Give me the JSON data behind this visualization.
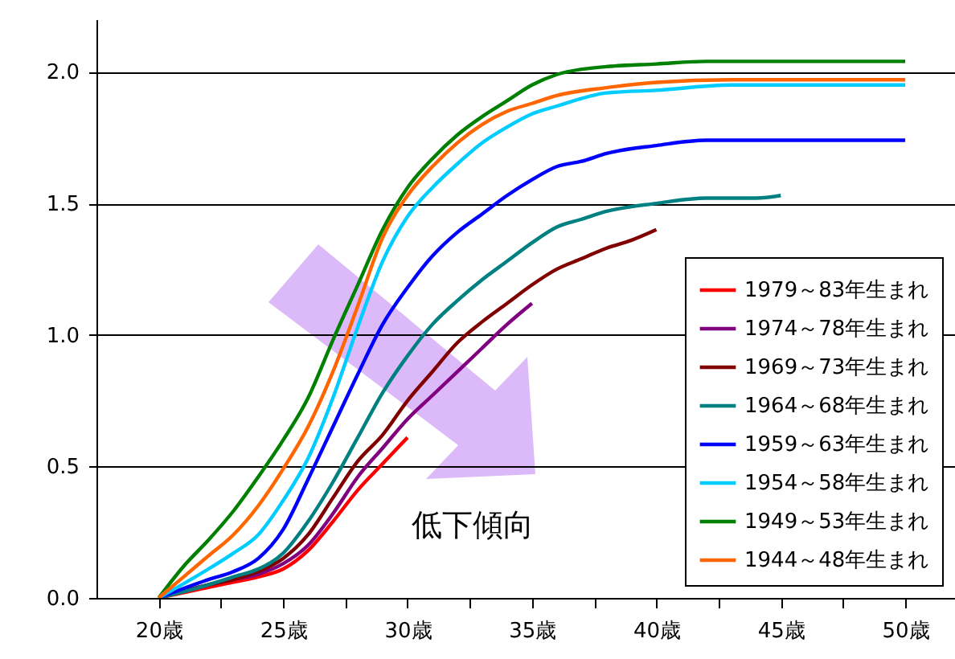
{
  "chart_data": {
    "type": "line",
    "annotations": [
      "低下傾向"
    ],
    "xlim": [
      17.5,
      52
    ],
    "ylim": [
      0,
      2.2
    ],
    "xticks": [
      {
        "value": 20,
        "label": "20歳"
      },
      {
        "value": 22.5,
        "label": null
      },
      {
        "value": 25,
        "label": "25歳"
      },
      {
        "value": 27.5,
        "label": null
      },
      {
        "value": 30,
        "label": "30歳"
      },
      {
        "value": 32.5,
        "label": null
      },
      {
        "value": 35,
        "label": "35歳"
      },
      {
        "value": 37.5,
        "label": null
      },
      {
        "value": 40,
        "label": "40歳"
      },
      {
        "value": 42.5,
        "label": null
      },
      {
        "value": 45,
        "label": "45歳"
      },
      {
        "value": 47.5,
        "label": null
      },
      {
        "value": 50,
        "label": "50歳"
      }
    ],
    "yticks": [
      {
        "value": 0,
        "label": "0.0"
      },
      {
        "value": 0.5,
        "label": "0.5"
      },
      {
        "value": 1,
        "label": "1.0"
      },
      {
        "value": 1.5,
        "label": "1.5"
      },
      {
        "value": 2,
        "label": "2.0"
      }
    ],
    "grid": "y",
    "legend": "bottom right",
    "series": [
      {
        "name": "1979～83年生まれ",
        "color": "#ff0000",
        "x": [
          20,
          22,
          23,
          24,
          25,
          26,
          27,
          28,
          29,
          30
        ],
        "values": [
          0,
          0.04,
          0.06,
          0.08,
          0.11,
          0.18,
          0.29,
          0.41,
          0.51,
          0.61
        ]
      },
      {
        "name": "1974～78年生まれ",
        "color": "#800080",
        "x": [
          20,
          22,
          23,
          24,
          25,
          26,
          27,
          28,
          29,
          30,
          31,
          32,
          33,
          34,
          35
        ],
        "values": [
          0,
          0.05,
          0.07,
          0.09,
          0.13,
          0.2,
          0.32,
          0.46,
          0.57,
          0.68,
          0.77,
          0.86,
          0.95,
          1.04,
          1.12
        ]
      },
      {
        "name": "1969～73年生まれ",
        "color": "#800000",
        "x": [
          20,
          22,
          23,
          24,
          25,
          26,
          27,
          28,
          29,
          30,
          31,
          32,
          33,
          34,
          35,
          36,
          37,
          38,
          39,
          40
        ],
        "values": [
          0,
          0.05,
          0.07,
          0.1,
          0.15,
          0.24,
          0.38,
          0.52,
          0.62,
          0.75,
          0.86,
          0.97,
          1.05,
          1.12,
          1.19,
          1.25,
          1.29,
          1.33,
          1.36,
          1.4
        ]
      },
      {
        "name": "1964～68年生まれ",
        "color": "#008080",
        "x": [
          20,
          22,
          23,
          24,
          25,
          26,
          27,
          28,
          29,
          30,
          31,
          32,
          33,
          34,
          35,
          36,
          37,
          38,
          40,
          42,
          44,
          45
        ],
        "values": [
          0,
          0.05,
          0.08,
          0.11,
          0.17,
          0.29,
          0.44,
          0.61,
          0.78,
          0.92,
          1.04,
          1.13,
          1.21,
          1.28,
          1.35,
          1.41,
          1.44,
          1.47,
          1.5,
          1.52,
          1.52,
          1.53
        ]
      },
      {
        "name": "1959～63年生まれ",
        "color": "#0000ff",
        "x": [
          20,
          22,
          23,
          24,
          25,
          26,
          27,
          28,
          29,
          30,
          31,
          32,
          33,
          34,
          35,
          36,
          37,
          38,
          40,
          42,
          50
        ],
        "values": [
          0,
          0.07,
          0.1,
          0.15,
          0.26,
          0.45,
          0.65,
          0.85,
          1.04,
          1.18,
          1.3,
          1.39,
          1.46,
          1.53,
          1.59,
          1.64,
          1.66,
          1.69,
          1.72,
          1.74,
          1.74
        ]
      },
      {
        "name": "1954～58年生まれ",
        "color": "#00ccff",
        "x": [
          20,
          22,
          23,
          24,
          25,
          26,
          27,
          28,
          29,
          30,
          31,
          32,
          33,
          34,
          35,
          36,
          38,
          40,
          43,
          50
        ],
        "values": [
          0,
          0.11,
          0.17,
          0.24,
          0.37,
          0.53,
          0.76,
          1.03,
          1.28,
          1.45,
          1.56,
          1.65,
          1.73,
          1.79,
          1.84,
          1.87,
          1.92,
          1.93,
          1.95,
          1.95
        ]
      },
      {
        "name": "1949～53年生まれ",
        "color": "#008000",
        "x": [
          20,
          21,
          22,
          23,
          24,
          25,
          26,
          27,
          28,
          29,
          30,
          31,
          32,
          33,
          34,
          35,
          36,
          37,
          38,
          40,
          42,
          50
        ],
        "values": [
          0,
          0.12,
          0.22,
          0.33,
          0.46,
          0.6,
          0.76,
          0.98,
          1.19,
          1.4,
          1.56,
          1.67,
          1.76,
          1.83,
          1.89,
          1.95,
          1.99,
          2.01,
          2.02,
          2.03,
          2.04,
          2.04
        ]
      },
      {
        "name": "1944～48年生まれ",
        "color": "#ff6600",
        "x": [
          20,
          21,
          22,
          23,
          24,
          25,
          26,
          27,
          28,
          29,
          30,
          31,
          32,
          33,
          34,
          35,
          36,
          38,
          40,
          43,
          50
        ],
        "values": [
          0,
          0.08,
          0.16,
          0.24,
          0.35,
          0.49,
          0.65,
          0.86,
          1.11,
          1.37,
          1.53,
          1.64,
          1.73,
          1.8,
          1.85,
          1.88,
          1.91,
          1.94,
          1.96,
          1.97,
          1.97
        ]
      }
    ]
  }
}
